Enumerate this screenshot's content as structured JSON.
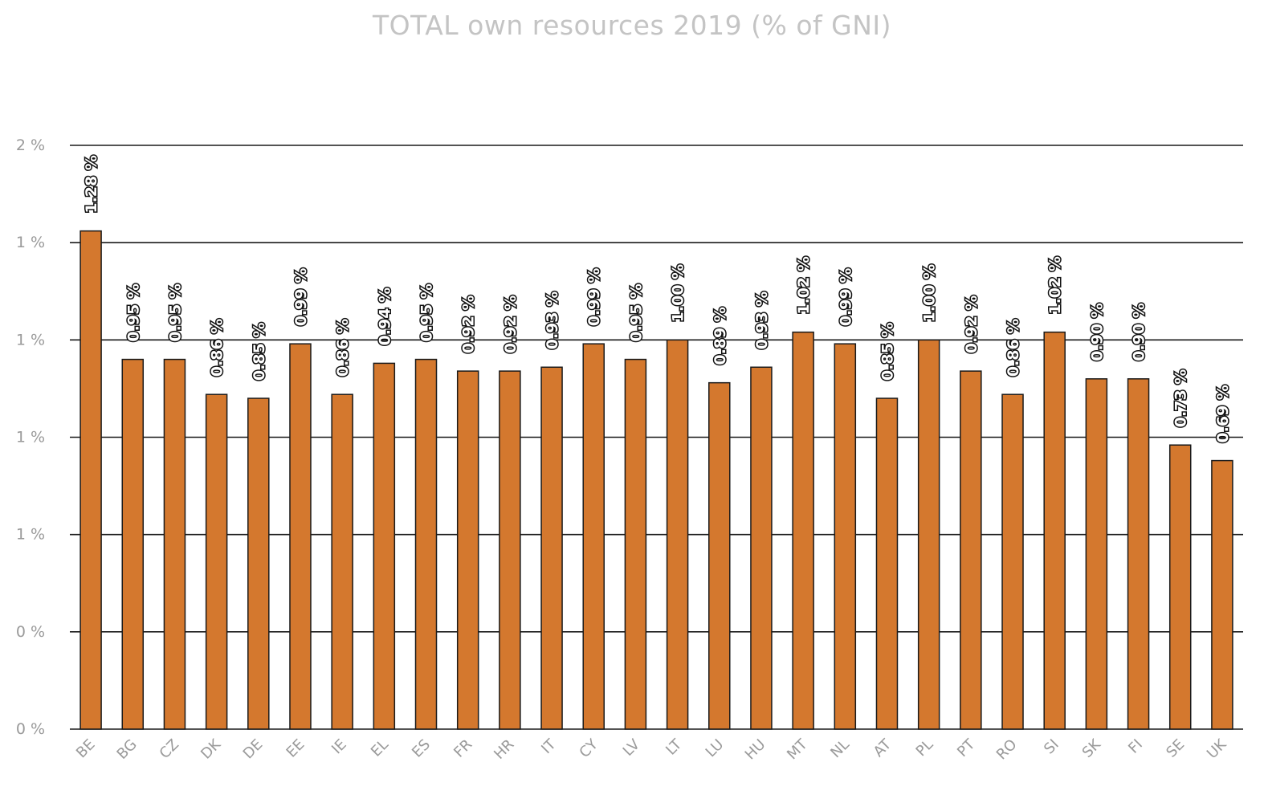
{
  "title": "TOTAL own resources 2019 (% of GNI)",
  "chart_data": {
    "type": "bar",
    "title": "TOTAL own resources 2019 (% of GNI)",
    "xlabel": "",
    "ylabel": "",
    "ylim": [
      0,
      1.5
    ],
    "grid": true,
    "legend": "none",
    "bar_color": "#d4782e",
    "yticks": [
      0,
      0.25,
      0.5,
      0.75,
      1.0,
      1.25,
      1.5
    ],
    "ytick_labels": [
      "0 %",
      "0 %",
      "1 %",
      "1 %",
      "1 %",
      "1 %",
      "2 %"
    ],
    "categories": [
      "BE",
      "BG",
      "CZ",
      "DK",
      "DE",
      "EE",
      "IE",
      "EL",
      "ES",
      "FR",
      "HR",
      "IT",
      "CY",
      "LV",
      "LT",
      "LU",
      "HU",
      "MT",
      "NL",
      "AT",
      "PL",
      "PT",
      "RO",
      "SI",
      "SK",
      "FI",
      "SE",
      "UK"
    ],
    "values": [
      1.28,
      0.95,
      0.95,
      0.86,
      0.85,
      0.99,
      0.86,
      0.94,
      0.95,
      0.92,
      0.92,
      0.93,
      0.99,
      0.95,
      1.0,
      0.89,
      0.93,
      1.02,
      0.99,
      0.85,
      1.0,
      0.92,
      0.86,
      1.02,
      0.9,
      0.9,
      0.73,
      0.69
    ],
    "value_labels": [
      "1.28 %",
      "0.95 %",
      "0.95 %",
      "0.86 %",
      "0.85 %",
      "0.99 %",
      "0.86 %",
      "0.94 %",
      "0.95 %",
      "0.92 %",
      "0.92 %",
      "0.93 %",
      "0.99 %",
      "0.95 %",
      "1.00 %",
      "0.89 %",
      "0.93 %",
      "1.02 %",
      "0.99 %",
      "0.85 %",
      "1.00 %",
      "0.92 %",
      "0.86 %",
      "1.02 %",
      "0.90 %",
      "0.90 %",
      "0.73 %",
      "0.69 %"
    ]
  }
}
